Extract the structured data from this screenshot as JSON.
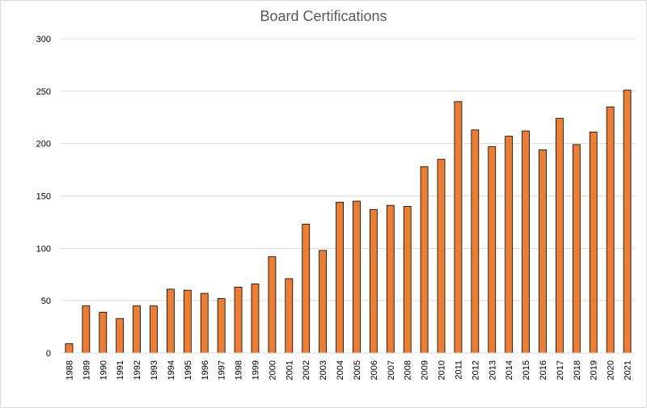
{
  "chart_data": {
    "type": "bar",
    "title": "Board Certifications",
    "xlabel": "",
    "ylabel": "",
    "ylim": [
      0,
      300
    ],
    "yticks": [
      0,
      50,
      100,
      150,
      200,
      250,
      300
    ],
    "grid": true,
    "bar_color": "#ED7D31",
    "bar_edge_color": "#000000",
    "grid_color": "#d9d9d9",
    "categories": [
      "1988",
      "1989",
      "1990",
      "1991",
      "1992",
      "1993",
      "1994",
      "1995",
      "1996",
      "1997",
      "1998",
      "1999",
      "2000",
      "2001",
      "2002",
      "2003",
      "2004",
      "2005",
      "2006",
      "2007",
      "2008",
      "2009",
      "2010",
      "2011",
      "2012",
      "2013",
      "2014",
      "2015",
      "2016",
      "2017",
      "2018",
      "2019",
      "2020",
      "2021"
    ],
    "values": [
      9,
      45,
      39,
      33,
      45,
      45,
      61,
      60,
      57,
      52,
      63,
      66,
      92,
      71,
      123,
      98,
      144,
      145,
      137,
      141,
      140,
      178,
      185,
      240,
      213,
      197,
      207,
      212,
      194,
      224,
      199,
      211,
      235,
      251
    ]
  }
}
